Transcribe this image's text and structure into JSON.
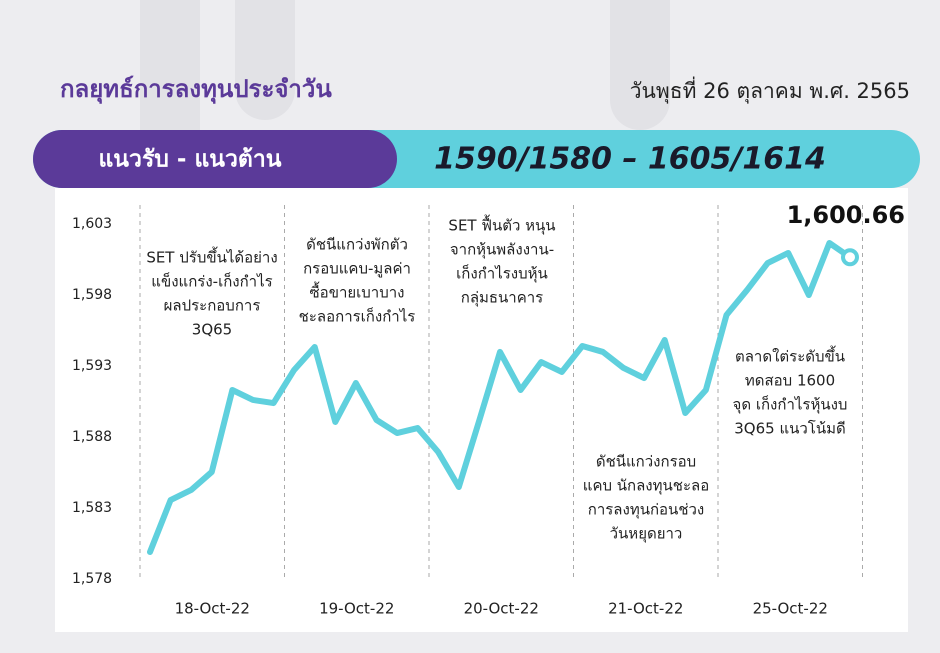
{
  "header": {
    "title": "กลยุทธ์การลงทุนประจำวัน",
    "date": "วันพุธที่ 26 ตุลาคม พ.ศ. 2565"
  },
  "banner": {
    "label": "แนวรับ - แนวต้าน",
    "levels": "1590/1580 –  1605/1614"
  },
  "chart_data": {
    "type": "line",
    "color": "#5fd0dd",
    "values": [
      1579.9,
      1583.56,
      1584.27,
      1585.54,
      1591.31,
      1590.61,
      1590.39,
      1592.72,
      1594.34,
      1589.06,
      1591.8,
      1589.2,
      1588.28,
      1588.63,
      1586.94,
      1584.48,
      1589.2,
      1593.99,
      1591.31,
      1593.28,
      1592.58,
      1594.41,
      1593.99,
      1592.86,
      1592.15,
      1594.83,
      1589.69,
      1591.31,
      1596.59,
      1598.35,
      1600.25,
      1600.96,
      1598.0,
      1601.66,
      1600.66
    ],
    "value_labels": [
      null,
      null,
      null,
      null,
      null,
      null,
      null,
      null,
      null,
      null,
      null,
      null,
      null,
      null,
      null,
      null,
      null,
      null,
      null,
      null,
      null,
      null,
      null,
      null,
      null,
      null,
      null,
      null,
      null,
      null,
      null,
      null,
      null,
      null,
      "1,600.66"
    ],
    "days": [
      "18-Oct-22",
      "19-Oct-22",
      "20-Oct-22",
      "21-Oct-22",
      "25-Oct-22"
    ],
    "annotations": [
      [
        "SET ปรับขึ้นได้อย่าง",
        "แข็งแกร่ง-เก็งกำไร",
        "ผลประกอบการ",
        "3Q65"
      ],
      [
        "ดัชนีแกว่งพักตัว",
        "กรอบแคบ-มูลค่า",
        "ซื้อขายเบาบาง",
        "ชะลอการเก็งกำไร"
      ],
      [
        "SET ฟื้นตัว หนุน",
        "จากหุ้นพลังงาน-",
        "เก็งกำไรงบหุ้น",
        "กลุ่มธนาคาร"
      ],
      [
        "ดัชนีแกว่งกรอบ",
        "แคบ นักลงทุนชะลอ",
        "การลงทุนก่อนช่วง",
        "วันหยุดยาว"
      ],
      [
        "ตลาดใต่ระดับขึ้น",
        "ทดสอบ 1600",
        "จุด เก็งกำไรหุ้นงบ",
        "3Q65 แนวโน้มดี"
      ]
    ],
    "ylim": [
      1578,
      1603
    ],
    "yticks": [
      {
        "value": 1578,
        "label": "1,578"
      },
      {
        "value": 1583,
        "label": "1,583"
      },
      {
        "value": 1588,
        "label": "1,588"
      },
      {
        "value": 1593,
        "label": "1,593"
      },
      {
        "value": 1598,
        "label": "1,598"
      },
      {
        "value": 1603,
        "label": "1,603"
      }
    ]
  }
}
